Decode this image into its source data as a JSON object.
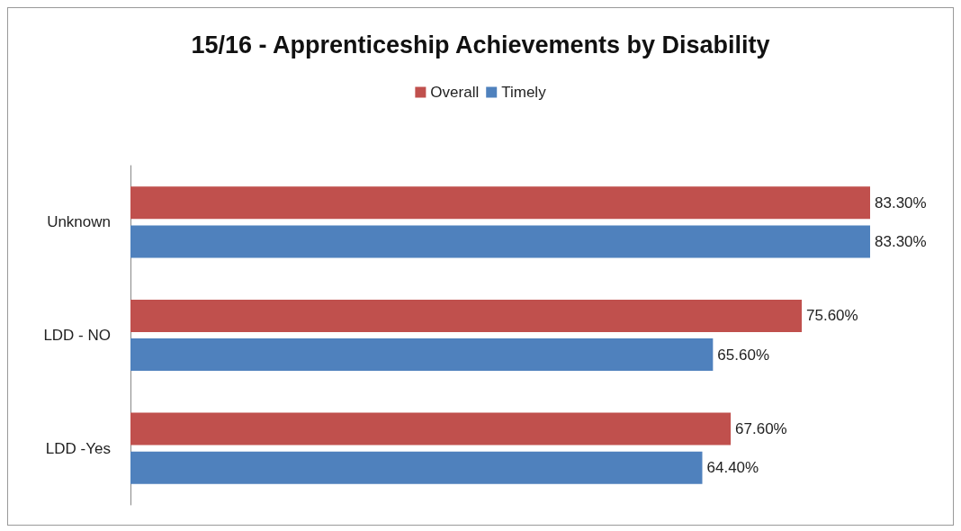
{
  "chart_data": {
    "type": "bar",
    "orientation": "horizontal",
    "title": "15/16 - Apprenticeship Achievements by Disability",
    "categories": [
      "Unknown",
      "LDD - NO",
      "LDD -Yes"
    ],
    "series": [
      {
        "name": "Overall",
        "color": "#c0504d",
        "values": [
          83.3,
          75.6,
          67.6
        ],
        "value_labels": [
          "83.30%",
          "75.60%",
          "67.60%"
        ]
      },
      {
        "name": "Timely",
        "color": "#4f81bd",
        "values": [
          83.3,
          65.6,
          64.4
        ],
        "value_labels": [
          "83.30%",
          "65.60%",
          "64.40%"
        ]
      }
    ],
    "legend": "top"
  }
}
